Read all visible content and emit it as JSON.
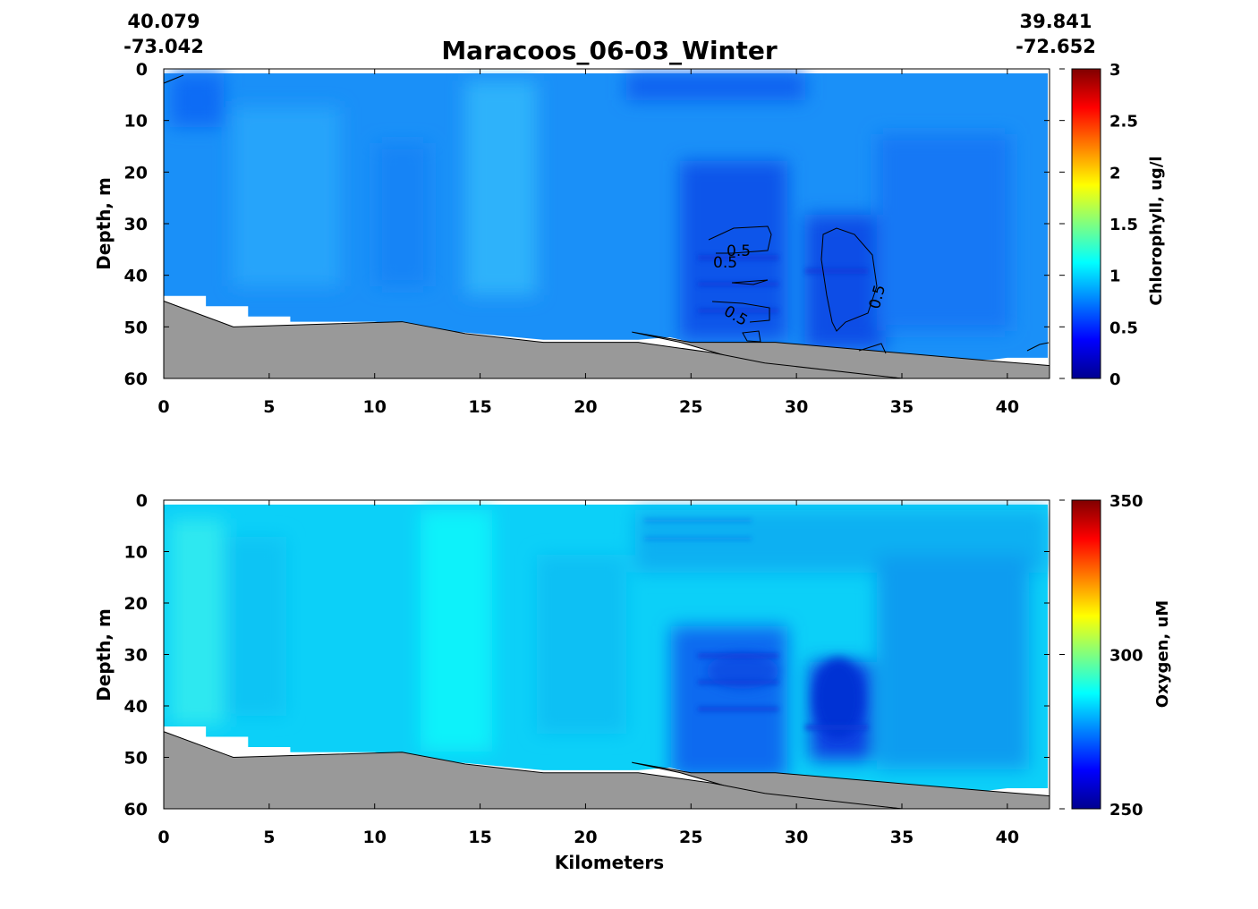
{
  "header": {
    "title": "Maracoos_06-03_Winter",
    "start_lat": "40.079",
    "start_lon": "-73.042",
    "end_lat": "39.841",
    "end_lon": "-72.652"
  },
  "colors": {
    "bathymetry": "#999999",
    "colormap": "jet"
  },
  "chart_data": [
    {
      "type": "heatmap",
      "title": "Maracoos_06-03_Winter",
      "xlabel": "",
      "ylabel": "Depth, m",
      "xlim": [
        0,
        42
      ],
      "ylim": [
        60,
        0
      ],
      "xticks": [
        0,
        5,
        10,
        15,
        20,
        25,
        30,
        35,
        40
      ],
      "yticks": [
        0,
        10,
        20,
        30,
        40,
        50,
        60
      ],
      "colorbar": {
        "label": "Chlorophyll, ug/l",
        "range": [
          0,
          3
        ],
        "ticks": [
          "0",
          "0.5",
          "1",
          "1.5",
          "2",
          "2.5",
          "3"
        ]
      },
      "contour_label": "0.5",
      "contour_level": 0.5
    },
    {
      "type": "heatmap",
      "title": "",
      "xlabel": "Kilometers",
      "ylabel": "Depth, m",
      "xlim": [
        0,
        42
      ],
      "ylim": [
        60,
        0
      ],
      "xticks": [
        0,
        5,
        10,
        15,
        20,
        25,
        30,
        35,
        40
      ],
      "yticks": [
        0,
        10,
        20,
        30,
        40,
        50,
        60
      ],
      "colorbar": {
        "label": "Oxygen, uM",
        "range": [
          250,
          350
        ],
        "ticks": [
          "250",
          "300",
          "350"
        ]
      }
    }
  ],
  "bathymetry": [
    [
      0,
      45
    ],
    [
      3.3,
      50
    ],
    [
      11.3,
      49
    ],
    [
      14.3,
      51.3
    ],
    [
      18,
      53
    ],
    [
      22.5,
      53
    ],
    [
      26,
      55
    ],
    [
      28.5,
      57
    ],
    [
      35,
      60
    ],
    [
      42,
      60
    ]
  ],
  "bathymetry_secondary": [
    [
      22.2,
      51
    ],
    [
      25,
      53
    ],
    [
      29,
      53
    ],
    [
      39,
      56.5
    ],
    [
      42,
      57.5
    ],
    [
      42,
      60
    ],
    [
      35,
      60
    ],
    [
      29,
      57.5
    ],
    [
      27,
      56
    ],
    [
      24.5,
      53
    ]
  ],
  "data_floor": [
    [
      0,
      44
    ],
    [
      2,
      44
    ],
    [
      2,
      46
    ],
    [
      4,
      46
    ],
    [
      4,
      48
    ],
    [
      6,
      48
    ],
    [
      6,
      49
    ],
    [
      10,
      49
    ],
    [
      14,
      51
    ],
    [
      18,
      52.5
    ],
    [
      22.5,
      52.5
    ],
    [
      24,
      52
    ],
    [
      26,
      54
    ],
    [
      29,
      56
    ],
    [
      33,
      57
    ],
    [
      35,
      58
    ],
    [
      39,
      56.5
    ],
    [
      40,
      56
    ],
    [
      42,
      56
    ]
  ]
}
